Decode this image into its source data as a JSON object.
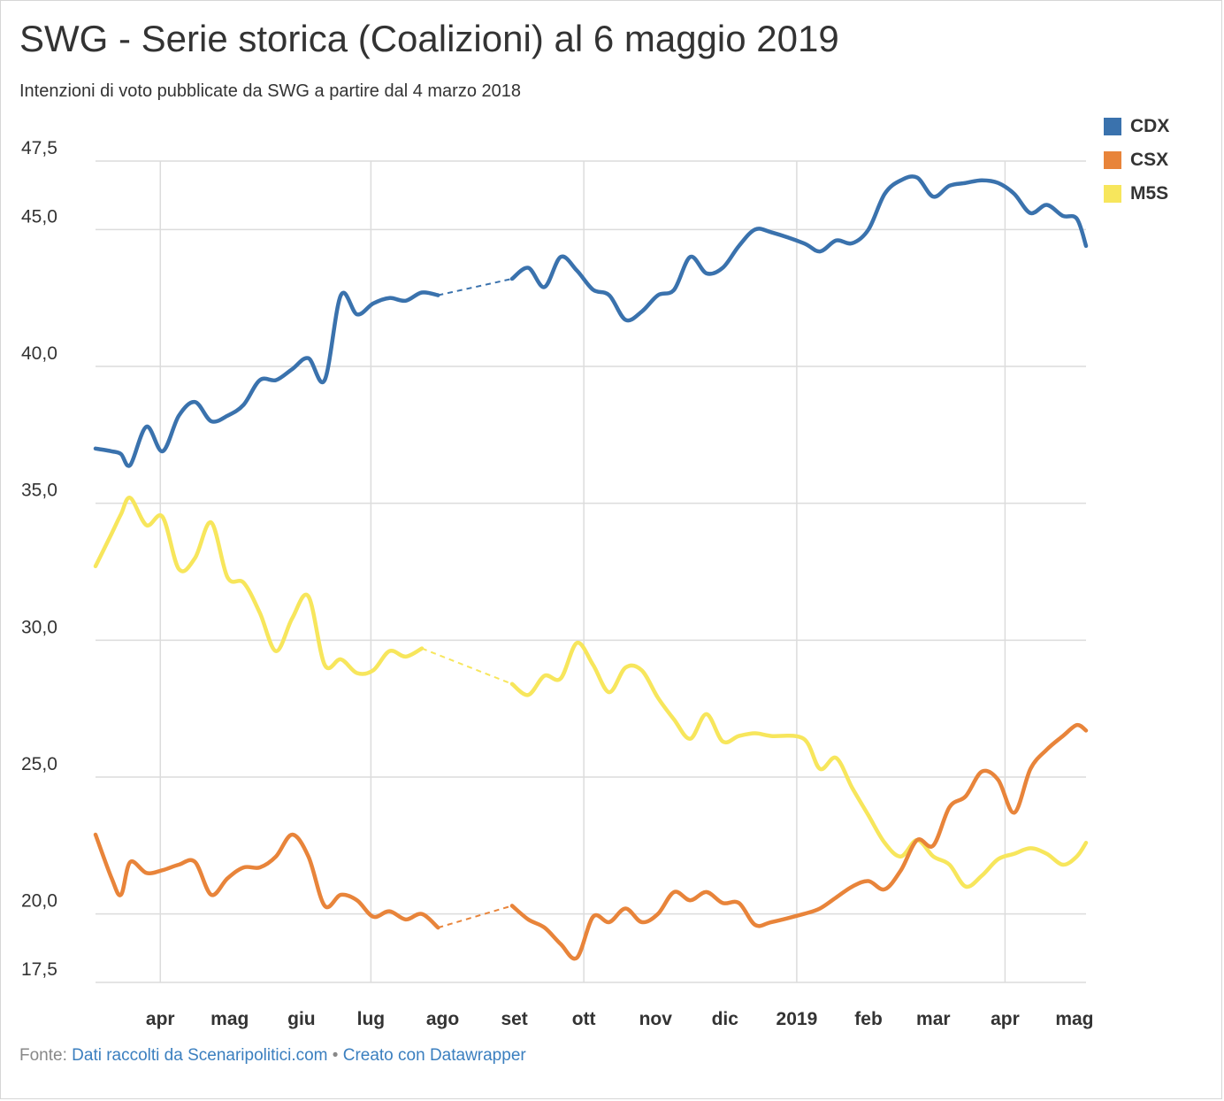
{
  "header": {
    "title": "SWG - Serie storica (Coalizioni) al 6 maggio 2019",
    "subtitle": "Intenzioni di voto pubblicate da SWG a partire dal 4 marzo 2018"
  },
  "footer": {
    "source_prefix": "Fonte:",
    "source_link": "Dati raccolti da Scenaripolitici.com",
    "separator": "•",
    "credit_link": "Creato con Datawrapper"
  },
  "chart_data": {
    "type": "line",
    "title": "SWG - Serie storica (Coalizioni) al 6 maggio 2019",
    "subtitle": "Intenzioni di voto pubblicate da SWG a partire dal 4 marzo 2018",
    "xlabel": "",
    "ylabel": "",
    "ylim": [
      17.5,
      47.5
    ],
    "y_ticks": [
      47.5,
      45.0,
      40.0,
      35.0,
      30.0,
      25.0,
      20.0,
      17.5
    ],
    "y_tick_labels": [
      "47,5",
      "45,0",
      "40,0",
      "35,0",
      "30,0",
      "25,0",
      "20,0",
      "17,5"
    ],
    "x_range": [
      "2018-03-04",
      "2019-05-06"
    ],
    "x_ticks": [
      {
        "label": "apr",
        "date": "2018-04-01"
      },
      {
        "label": "mag",
        "date": "2018-05-01"
      },
      {
        "label": "giu",
        "date": "2018-06-01"
      },
      {
        "label": "lug",
        "date": "2018-07-01"
      },
      {
        "label": "ago",
        "date": "2018-08-01"
      },
      {
        "label": "set",
        "date": "2018-09-01"
      },
      {
        "label": "ott",
        "date": "2018-10-01"
      },
      {
        "label": "nov",
        "date": "2018-11-01"
      },
      {
        "label": "dic",
        "date": "2018-12-01"
      },
      {
        "label": "2019",
        "date": "2019-01-01"
      },
      {
        "label": "feb",
        "date": "2019-02-01"
      },
      {
        "label": "mar",
        "date": "2019-03-01"
      },
      {
        "label": "apr",
        "date": "2019-04-01"
      },
      {
        "label": "mag",
        "date": "2019-05-01"
      }
    ],
    "vertical_grid_dates": [
      "2018-04-01",
      "2018-07-01",
      "2018-10-01",
      "2019-01-01",
      "2019-04-01"
    ],
    "grid": true,
    "legend_position": "top-right",
    "gap": {
      "from": "2018-08-01",
      "to": "2018-08-31",
      "style": "dashed"
    },
    "series": [
      {
        "name": "CDX",
        "color": "#3a72ad",
        "points": [
          [
            "2018-03-04",
            37.0
          ],
          [
            "2018-03-11",
            36.9
          ],
          [
            "2018-03-15",
            36.8
          ],
          [
            "2018-03-19",
            36.4
          ],
          [
            "2018-03-26",
            37.8
          ],
          [
            "2018-04-02",
            36.9
          ],
          [
            "2018-04-09",
            38.2
          ],
          [
            "2018-04-16",
            38.7
          ],
          [
            "2018-04-23",
            38.0
          ],
          [
            "2018-04-30",
            38.2
          ],
          [
            "2018-05-07",
            38.6
          ],
          [
            "2018-05-14",
            39.5
          ],
          [
            "2018-05-21",
            39.5
          ],
          [
            "2018-05-28",
            39.9
          ],
          [
            "2018-06-04",
            40.3
          ],
          [
            "2018-06-11",
            39.5
          ],
          [
            "2018-06-18",
            42.6
          ],
          [
            "2018-06-25",
            41.9
          ],
          [
            "2018-07-02",
            42.3
          ],
          [
            "2018-07-09",
            42.5
          ],
          [
            "2018-07-16",
            42.4
          ],
          [
            "2018-07-23",
            42.7
          ],
          [
            "2018-07-30",
            42.6
          ],
          [
            "2018-08-31",
            43.2
          ],
          [
            "2018-09-07",
            43.6
          ],
          [
            "2018-09-14",
            42.9
          ],
          [
            "2018-09-21",
            44.0
          ],
          [
            "2018-09-28",
            43.5
          ],
          [
            "2018-10-05",
            42.8
          ],
          [
            "2018-10-12",
            42.6
          ],
          [
            "2018-10-19",
            41.7
          ],
          [
            "2018-10-26",
            42.0
          ],
          [
            "2018-11-02",
            42.6
          ],
          [
            "2018-11-09",
            42.8
          ],
          [
            "2018-11-16",
            44.0
          ],
          [
            "2018-11-23",
            43.4
          ],
          [
            "2018-11-30",
            43.6
          ],
          [
            "2018-12-07",
            44.4
          ],
          [
            "2018-12-14",
            45.0
          ],
          [
            "2018-12-21",
            44.9
          ],
          [
            "2019-01-04",
            44.5
          ],
          [
            "2019-01-11",
            44.2
          ],
          [
            "2019-01-18",
            44.6
          ],
          [
            "2019-01-25",
            44.5
          ],
          [
            "2019-02-01",
            45.0
          ],
          [
            "2019-02-08",
            46.3
          ],
          [
            "2019-02-15",
            46.8
          ],
          [
            "2019-02-22",
            46.9
          ],
          [
            "2019-03-01",
            46.2
          ],
          [
            "2019-03-08",
            46.6
          ],
          [
            "2019-03-15",
            46.7
          ],
          [
            "2019-03-22",
            46.8
          ],
          [
            "2019-03-29",
            46.7
          ],
          [
            "2019-04-05",
            46.3
          ],
          [
            "2019-04-12",
            45.6
          ],
          [
            "2019-04-19",
            45.9
          ],
          [
            "2019-04-26",
            45.5
          ],
          [
            "2019-05-02",
            45.4
          ],
          [
            "2019-05-06",
            44.4
          ]
        ]
      },
      {
        "name": "CSX",
        "color": "#e8843a",
        "points": [
          [
            "2018-03-04",
            22.9
          ],
          [
            "2018-03-11",
            21.3
          ],
          [
            "2018-03-15",
            20.7
          ],
          [
            "2018-03-19",
            21.9
          ],
          [
            "2018-03-26",
            21.5
          ],
          [
            "2018-04-02",
            21.6
          ],
          [
            "2018-04-09",
            21.8
          ],
          [
            "2018-04-16",
            21.9
          ],
          [
            "2018-04-23",
            20.7
          ],
          [
            "2018-04-30",
            21.3
          ],
          [
            "2018-05-07",
            21.7
          ],
          [
            "2018-05-14",
            21.7
          ],
          [
            "2018-05-21",
            22.1
          ],
          [
            "2018-05-28",
            22.9
          ],
          [
            "2018-06-04",
            22.1
          ],
          [
            "2018-06-11",
            20.3
          ],
          [
            "2018-06-18",
            20.7
          ],
          [
            "2018-06-25",
            20.5
          ],
          [
            "2018-07-02",
            19.9
          ],
          [
            "2018-07-09",
            20.1
          ],
          [
            "2018-07-16",
            19.8
          ],
          [
            "2018-07-23",
            20.0
          ],
          [
            "2018-07-30",
            19.5
          ],
          [
            "2018-08-31",
            20.3
          ],
          [
            "2018-09-07",
            19.8
          ],
          [
            "2018-09-14",
            19.5
          ],
          [
            "2018-09-21",
            18.9
          ],
          [
            "2018-09-28",
            18.4
          ],
          [
            "2018-10-05",
            19.9
          ],
          [
            "2018-10-12",
            19.7
          ],
          [
            "2018-10-19",
            20.2
          ],
          [
            "2018-10-26",
            19.7
          ],
          [
            "2018-11-02",
            20.0
          ],
          [
            "2018-11-09",
            20.8
          ],
          [
            "2018-11-16",
            20.5
          ],
          [
            "2018-11-23",
            20.8
          ],
          [
            "2018-11-30",
            20.4
          ],
          [
            "2018-12-07",
            20.4
          ],
          [
            "2018-12-14",
            19.6
          ],
          [
            "2018-12-21",
            19.7
          ],
          [
            "2019-01-04",
            20.0
          ],
          [
            "2019-01-11",
            20.2
          ],
          [
            "2019-01-18",
            20.6
          ],
          [
            "2019-01-25",
            21.0
          ],
          [
            "2019-02-01",
            21.2
          ],
          [
            "2019-02-08",
            20.9
          ],
          [
            "2019-02-15",
            21.6
          ],
          [
            "2019-02-22",
            22.7
          ],
          [
            "2019-03-01",
            22.5
          ],
          [
            "2019-03-08",
            23.9
          ],
          [
            "2019-03-15",
            24.3
          ],
          [
            "2019-03-22",
            25.2
          ],
          [
            "2019-03-29",
            24.9
          ],
          [
            "2019-04-05",
            23.7
          ],
          [
            "2019-04-12",
            25.3
          ],
          [
            "2019-04-19",
            26.0
          ],
          [
            "2019-04-26",
            26.5
          ],
          [
            "2019-05-02",
            26.9
          ],
          [
            "2019-05-06",
            26.7
          ]
        ]
      },
      {
        "name": "M5S",
        "color": "#f7e65c",
        "points": [
          [
            "2018-03-04",
            32.7
          ],
          [
            "2018-03-11",
            33.9
          ],
          [
            "2018-03-15",
            34.6
          ],
          [
            "2018-03-19",
            35.2
          ],
          [
            "2018-03-26",
            34.2
          ],
          [
            "2018-04-02",
            34.5
          ],
          [
            "2018-04-09",
            32.6
          ],
          [
            "2018-04-16",
            33.0
          ],
          [
            "2018-04-23",
            34.3
          ],
          [
            "2018-04-30",
            32.3
          ],
          [
            "2018-05-07",
            32.1
          ],
          [
            "2018-05-14",
            31.0
          ],
          [
            "2018-05-21",
            29.6
          ],
          [
            "2018-05-28",
            30.8
          ],
          [
            "2018-06-04",
            31.6
          ],
          [
            "2018-06-11",
            29.1
          ],
          [
            "2018-06-18",
            29.3
          ],
          [
            "2018-06-25",
            28.8
          ],
          [
            "2018-07-02",
            28.9
          ],
          [
            "2018-07-09",
            29.6
          ],
          [
            "2018-07-16",
            29.4
          ],
          [
            "2018-07-23",
            29.7
          ],
          [
            "2018-08-31",
            28.4
          ],
          [
            "2018-09-07",
            28.0
          ],
          [
            "2018-09-14",
            28.7
          ],
          [
            "2018-09-21",
            28.6
          ],
          [
            "2018-09-28",
            29.9
          ],
          [
            "2018-10-05",
            29.1
          ],
          [
            "2018-10-12",
            28.1
          ],
          [
            "2018-10-19",
            29.0
          ],
          [
            "2018-10-26",
            28.9
          ],
          [
            "2018-11-02",
            27.9
          ],
          [
            "2018-11-09",
            27.1
          ],
          [
            "2018-11-16",
            26.4
          ],
          [
            "2018-11-23",
            27.3
          ],
          [
            "2018-11-30",
            26.3
          ],
          [
            "2018-12-07",
            26.5
          ],
          [
            "2018-12-14",
            26.6
          ],
          [
            "2018-12-21",
            26.5
          ],
          [
            "2019-01-04",
            26.4
          ],
          [
            "2019-01-11",
            25.3
          ],
          [
            "2019-01-18",
            25.7
          ],
          [
            "2019-01-25",
            24.6
          ],
          [
            "2019-02-01",
            23.6
          ],
          [
            "2019-02-08",
            22.6
          ],
          [
            "2019-02-15",
            22.1
          ],
          [
            "2019-02-22",
            22.7
          ],
          [
            "2019-03-01",
            22.1
          ],
          [
            "2019-03-08",
            21.8
          ],
          [
            "2019-03-15",
            21.0
          ],
          [
            "2019-03-22",
            21.4
          ],
          [
            "2019-03-29",
            22.0
          ],
          [
            "2019-04-05",
            22.2
          ],
          [
            "2019-04-12",
            22.4
          ],
          [
            "2019-04-19",
            22.2
          ],
          [
            "2019-04-26",
            21.8
          ],
          [
            "2019-05-02",
            22.1
          ],
          [
            "2019-05-06",
            22.6
          ]
        ]
      }
    ]
  }
}
